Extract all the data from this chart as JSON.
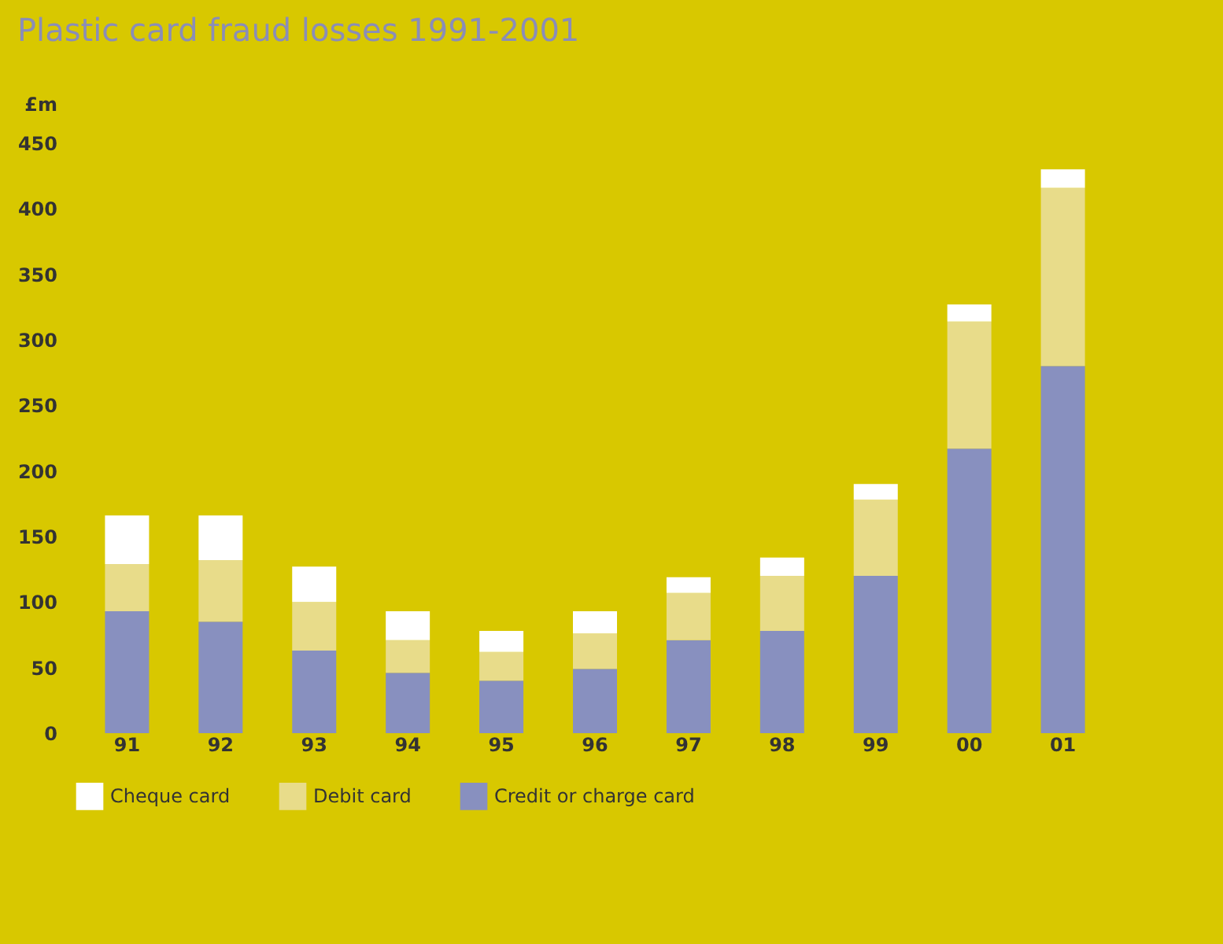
{
  "chart_data": {
    "type": "bar",
    "title": "Plastic card fraud losses 1991-2001",
    "ylabel": "£m",
    "categories": [
      "91",
      "92",
      "93",
      "94",
      "95",
      "96",
      "97",
      "98",
      "99",
      "00",
      "01"
    ],
    "stacked": true,
    "series": [
      {
        "name": "Credit or charge card",
        "color": "#8890bf",
        "values": [
          93,
          85,
          63,
          46,
          40,
          49,
          71,
          78,
          120,
          217,
          280
        ]
      },
      {
        "name": "Debit card",
        "color": "#e8dc8a",
        "values": [
          36,
          47,
          37,
          25,
          22,
          27,
          36,
          42,
          58,
          97,
          136
        ]
      },
      {
        "name": "Cheque card",
        "color": "#ffffff",
        "values": [
          37,
          34,
          27,
          22,
          16,
          17,
          12,
          14,
          12,
          13,
          14
        ]
      }
    ],
    "ylim": [
      0,
      450
    ],
    "yticks": [
      0,
      50,
      100,
      150,
      200,
      250,
      300,
      350,
      400,
      450
    ],
    "grid": false,
    "legend": "bottom"
  }
}
